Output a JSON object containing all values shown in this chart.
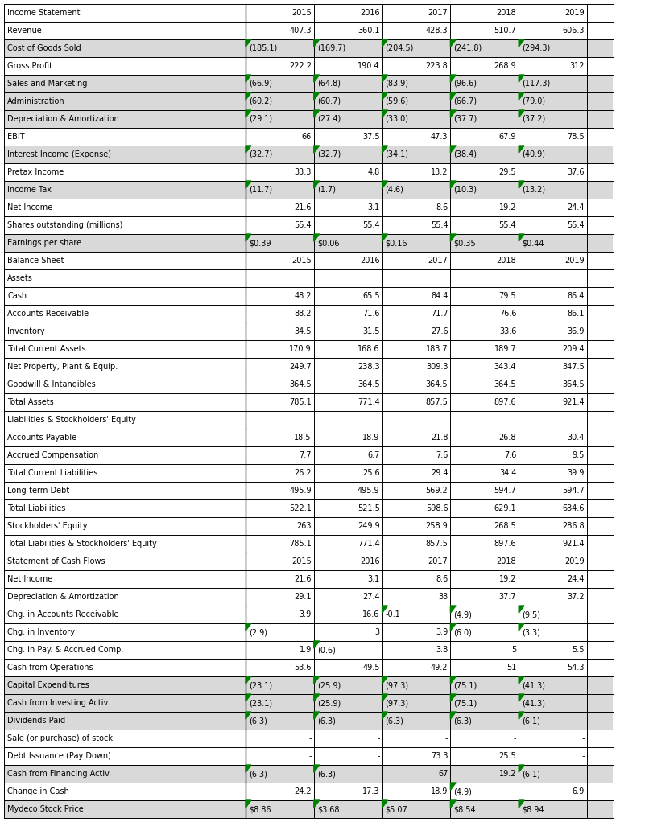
{
  "rows": [
    {
      "label": "Income Statement",
      "vals": [
        "2015",
        "2016",
        "2017",
        "2018",
        "2019"
      ],
      "style": "header"
    },
    {
      "label": "Revenue",
      "vals": [
        "407.3",
        "360.1",
        "428.3",
        "510.7",
        "606.3"
      ],
      "style": "normal"
    },
    {
      "label": "Cost of Goods Sold",
      "vals": [
        "(185.1)",
        "(169.7)",
        "(204.5)",
        "(241.8)",
        "(294.3)"
      ],
      "style": "shaded"
    },
    {
      "label": "Gross Profit",
      "vals": [
        "222.2",
        "190.4",
        "223.8",
        "268.9",
        "312"
      ],
      "style": "normal"
    },
    {
      "label": "Sales and Marketing",
      "vals": [
        "(66.9)",
        "(64.8)",
        "(83.9)",
        "(96.6)",
        "(117.3)"
      ],
      "style": "shaded"
    },
    {
      "label": "Administration",
      "vals": [
        "(60.2)",
        "(60.7)",
        "(59.6)",
        "(66.7)",
        "(79.0)"
      ],
      "style": "shaded"
    },
    {
      "label": "Depreciation & Amortization",
      "vals": [
        "(29.1)",
        "(27.4)",
        "(33.0)",
        "(37.7)",
        "(37.2)"
      ],
      "style": "shaded"
    },
    {
      "label": "EBIT",
      "vals": [
        "66",
        "37.5",
        "47.3",
        "67.9",
        "78.5"
      ],
      "style": "normal"
    },
    {
      "label": "Interest Income (Expense)",
      "vals": [
        "(32.7)",
        "(32.7)",
        "(34.1)",
        "(38.4)",
        "(40.9)"
      ],
      "style": "shaded"
    },
    {
      "label": "Pretax Income",
      "vals": [
        "33.3",
        "4.8",
        "13.2",
        "29.5",
        "37.6"
      ],
      "style": "normal"
    },
    {
      "label": "Income Tax",
      "vals": [
        "(11.7)",
        "(1.7)",
        "(4.6)",
        "(10.3)",
        "(13.2)"
      ],
      "style": "shaded"
    },
    {
      "label": "Net Income",
      "vals": [
        "21.6",
        "3.1",
        "8.6",
        "19.2",
        "24.4"
      ],
      "style": "normal"
    },
    {
      "label": "Shares outstanding (millions)",
      "vals": [
        "55.4",
        "55.4",
        "55.4",
        "55.4",
        "55.4"
      ],
      "style": "normal"
    },
    {
      "label": "Earnings per share",
      "vals": [
        "$0.39",
        "$0.06",
        "$0.16",
        "$0.35",
        "$0.44"
      ],
      "style": "shaded"
    },
    {
      "label": "Balance Sheet",
      "vals": [
        "2015",
        "2016",
        "2017",
        "2018",
        "2019"
      ],
      "style": "header"
    },
    {
      "label": "Assets",
      "vals": [
        "",
        "",
        "",
        "",
        ""
      ],
      "style": "subheader"
    },
    {
      "label": "Cash",
      "vals": [
        "48.2",
        "65.5",
        "84.4",
        "79.5",
        "86.4"
      ],
      "style": "normal"
    },
    {
      "label": "Accounts Receivable",
      "vals": [
        "88.2",
        "71.6",
        "71.7",
        "76.6",
        "86.1"
      ],
      "style": "normal"
    },
    {
      "label": "Inventory",
      "vals": [
        "34.5",
        "31.5",
        "27.6",
        "33.6",
        "36.9"
      ],
      "style": "normal"
    },
    {
      "label": "Total Current Assets",
      "vals": [
        "170.9",
        "168.6",
        "183.7",
        "189.7",
        "209.4"
      ],
      "style": "normal"
    },
    {
      "label": "Net Property, Plant & Equip.",
      "vals": [
        "249.7",
        "238.3",
        "309.3",
        "343.4",
        "347.5"
      ],
      "style": "normal"
    },
    {
      "label": "Goodwill & Intangibles",
      "vals": [
        "364.5",
        "364.5",
        "364.5",
        "364.5",
        "364.5"
      ],
      "style": "normal"
    },
    {
      "label": "Total Assets",
      "vals": [
        "785.1",
        "771.4",
        "857.5",
        "897.6",
        "921.4"
      ],
      "style": "normal"
    },
    {
      "label": "Liabilities & Stockholders' Equity",
      "vals": [
        "",
        "",
        "",
        "",
        ""
      ],
      "style": "subheader"
    },
    {
      "label": "Accounts Payable",
      "vals": [
        "18.5",
        "18.9",
        "21.8",
        "26.8",
        "30.4"
      ],
      "style": "normal"
    },
    {
      "label": "Accrued Compensation",
      "vals": [
        "7.7",
        "6.7",
        "7.6",
        "7.6",
        "9.5"
      ],
      "style": "normal"
    },
    {
      "label": "Total Current Liabilities",
      "vals": [
        "26.2",
        "25.6",
        "29.4",
        "34.4",
        "39.9"
      ],
      "style": "normal"
    },
    {
      "label": "Long-term Debt",
      "vals": [
        "495.9",
        "495.9",
        "569.2",
        "594.7",
        "594.7"
      ],
      "style": "normal"
    },
    {
      "label": "Total Liabilities",
      "vals": [
        "522.1",
        "521.5",
        "598.6",
        "629.1",
        "634.6"
      ],
      "style": "normal"
    },
    {
      "label": "Stockholders' Equity",
      "vals": [
        "263",
        "249.9",
        "258.9",
        "268.5",
        "286.8"
      ],
      "style": "normal"
    },
    {
      "label": "Total Liabilities & Stockholders' Equity",
      "vals": [
        "785.1",
        "771.4",
        "857.5",
        "897.6",
        "921.4"
      ],
      "style": "normal"
    },
    {
      "label": "Statement of Cash Flows",
      "vals": [
        "2015",
        "2016",
        "2017",
        "2018",
        "2019"
      ],
      "style": "header"
    },
    {
      "label": "Net Income",
      "vals": [
        "21.6",
        "3.1",
        "8.6",
        "19.2",
        "24.4"
      ],
      "style": "normal"
    },
    {
      "label": "Depreciation & Amortization",
      "vals": [
        "29.1",
        "27.4",
        "33",
        "37.7",
        "37.2"
      ],
      "style": "normal"
    },
    {
      "label": "Chg. in Accounts Receivable",
      "vals": [
        "3.9",
        "16.6",
        "-0.1",
        "(4.9)",
        "(9.5)"
      ],
      "style": "normal"
    },
    {
      "label": "Chg. in Inventory",
      "vals": [
        "(2.9)",
        "3",
        "3.9",
        "(6.0)",
        "(3.3)"
      ],
      "style": "normal"
    },
    {
      "label": "Chg. in Pay. & Accrued Comp.",
      "vals": [
        "1.9",
        "(0.6)",
        "3.8",
        "5",
        "5.5"
      ],
      "style": "normal"
    },
    {
      "label": "Cash from Operations",
      "vals": [
        "53.6",
        "49.5",
        "49.2",
        "51",
        "54.3"
      ],
      "style": "normal"
    },
    {
      "label": "Capital Expenditures",
      "vals": [
        "(23.1)",
        "(25.9)",
        "(97.3)",
        "(75.1)",
        "(41.3)"
      ],
      "style": "shaded"
    },
    {
      "label": "Cash from Investing Activ.",
      "vals": [
        "(23.1)",
        "(25.9)",
        "(97.3)",
        "(75.1)",
        "(41.3)"
      ],
      "style": "shaded"
    },
    {
      "label": "Dividends Paid",
      "vals": [
        "(6.3)",
        "(6.3)",
        "(6.3)",
        "(6.3)",
        "(6.1)"
      ],
      "style": "shaded"
    },
    {
      "label": "Sale (or purchase) of stock",
      "vals": [
        "-",
        "-",
        "-",
        "-",
        "-"
      ],
      "style": "normal"
    },
    {
      "label": "Debt Issuance (Pay Down)",
      "vals": [
        "-",
        "-",
        "73.3",
        "25.5",
        "-"
      ],
      "style": "normal"
    },
    {
      "label": "Cash from Financing Activ.",
      "vals": [
        "(6.3)",
        "(6.3)",
        "67",
        "19.2",
        "(6.1)"
      ],
      "style": "shaded"
    },
    {
      "label": "Change in Cash",
      "vals": [
        "24.2",
        "17.3",
        "18.9",
        "(4.9)",
        "6.9"
      ],
      "style": "normal"
    },
    {
      "label": "Mydeco Stock Price",
      "vals": [
        "$8.86",
        "$3.68",
        "$5.07",
        "$8.54",
        "$8.94"
      ],
      "style": "shaded"
    }
  ],
  "bg_color": "#ffffff",
  "shaded_bg": "#d9d9d9",
  "border_color": "#000000",
  "text_color": "#000000",
  "green_marker_color": "#008000",
  "font_size": 7.0,
  "fig_width": 8.06,
  "fig_height": 10.22,
  "dpi": 100
}
